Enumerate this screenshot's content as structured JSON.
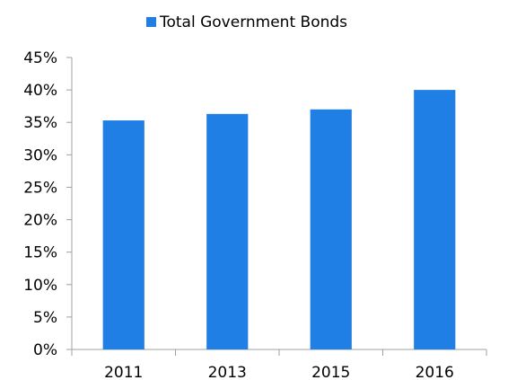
{
  "chart_data": {
    "type": "bar",
    "categories": [
      "2011",
      "2013",
      "2015",
      "2016"
    ],
    "series": [
      {
        "name": "Total Government Bonds",
        "values": [
          35.3,
          36.3,
          37.0,
          40.0
        ],
        "color": "#1f7fe5"
      }
    ],
    "ylim": [
      0,
      45
    ],
    "y_ticks": [
      "0%",
      "5%",
      "10%",
      "15%",
      "20%",
      "25%",
      "30%",
      "35%",
      "40%",
      "45%"
    ],
    "y_tick_values": [
      0,
      5,
      10,
      15,
      20,
      25,
      30,
      35,
      40,
      45
    ],
    "grid": false,
    "legend_position": "top-center",
    "axis_color": "#a0a0a0"
  }
}
